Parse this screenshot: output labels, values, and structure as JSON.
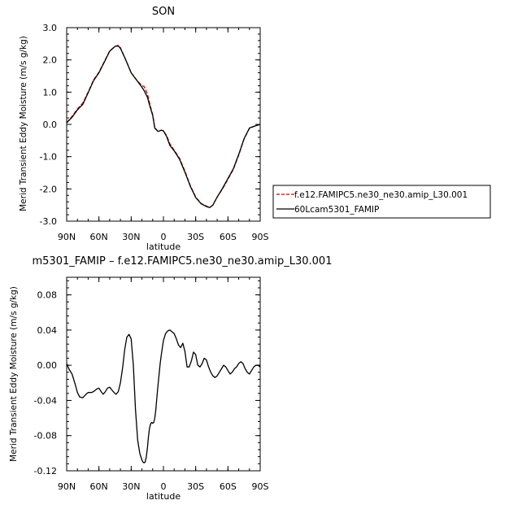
{
  "chart_data": [
    {
      "type": "line",
      "title": "SON",
      "xlabel": "latitude",
      "ylabel": "Merid Transient Eddy Moisture  (m/s g/kg)",
      "xticks": [
        "90N",
        "60N",
        "30N",
        "0",
        "30S",
        "60S",
        "90S"
      ],
      "yticks": [
        "3.0",
        "2.0",
        "1.0",
        "0.0",
        "-1.0",
        "-2.0",
        "-3.0"
      ],
      "xlim": [
        -90,
        90
      ],
      "ylim": [
        -3.0,
        3.0
      ],
      "legend_placement": "right",
      "series": [
        {
          "name": "f.e12.FAMIPC5.ne30_ne30.amip_L30.001",
          "color": "#cc0000",
          "style": "dashed",
          "x": [
            -90,
            -85,
            -80,
            -75,
            -70,
            -65,
            -60,
            -55,
            -50,
            -45,
            -42,
            -40,
            -35,
            -30,
            -25,
            -20,
            -18,
            -15,
            -12,
            -10,
            -8,
            -5,
            -2,
            0,
            3,
            6,
            10,
            15,
            20,
            25,
            30,
            35,
            40,
            43,
            46,
            50,
            55,
            60,
            65,
            70,
            75,
            80,
            85,
            90
          ],
          "y": [
            0.05,
            0.25,
            0.48,
            0.66,
            1.0,
            1.38,
            1.62,
            1.95,
            2.28,
            2.42,
            2.45,
            2.38,
            2.0,
            1.6,
            1.38,
            1.2,
            1.18,
            0.95,
            0.55,
            0.3,
            -0.1,
            -0.22,
            -0.18,
            -0.2,
            -0.35,
            -0.6,
            -0.8,
            -1.05,
            -1.45,
            -1.9,
            -2.25,
            -2.45,
            -2.53,
            -2.58,
            -2.5,
            -2.25,
            -2.0,
            -1.7,
            -1.4,
            -0.95,
            -0.45,
            -0.12,
            -0.05,
            0.0
          ]
        },
        {
          "name": "60Lcam5301_FAMIP",
          "color": "#000000",
          "style": "solid",
          "x": [
            -90,
            -85,
            -80,
            -75,
            -70,
            -65,
            -60,
            -55,
            -50,
            -45,
            -42,
            -40,
            -35,
            -30,
            -25,
            -20,
            -18,
            -15,
            -12,
            -10,
            -8,
            -5,
            -2,
            0,
            3,
            6,
            10,
            15,
            20,
            25,
            30,
            35,
            40,
            43,
            46,
            50,
            55,
            60,
            65,
            70,
            75,
            80,
            85,
            90
          ],
          "y": [
            0.05,
            0.22,
            0.45,
            0.62,
            0.98,
            1.36,
            1.6,
            1.93,
            2.27,
            2.42,
            2.43,
            2.36,
            2.0,
            1.6,
            1.38,
            1.15,
            1.05,
            0.85,
            0.5,
            0.28,
            -0.12,
            -0.22,
            -0.18,
            -0.2,
            -0.38,
            -0.65,
            -0.82,
            -1.08,
            -1.48,
            -1.92,
            -2.27,
            -2.46,
            -2.55,
            -2.58,
            -2.5,
            -2.25,
            -1.98,
            -1.68,
            -1.38,
            -0.93,
            -0.44,
            -0.11,
            -0.05,
            0.0
          ]
        }
      ]
    },
    {
      "type": "line",
      "title": "m5301_FAMIP  –  f.e12.FAMIPC5.ne30_ne30.amip_L30.001",
      "xlabel": "latitude",
      "ylabel": "Merid Transient Eddy Moisture  (m/s g/kg)",
      "xticks": [
        "90N",
        "60N",
        "30N",
        "0",
        "30S",
        "60S",
        "90S"
      ],
      "yticks": [
        "0.08",
        "0.04",
        "0.00",
        "-0.04",
        "-0.08",
        "-0.12"
      ],
      "xlim": [
        -90,
        90
      ],
      "ylim": [
        -0.12,
        0.1
      ],
      "series": [
        {
          "color": "#000000",
          "style": "solid",
          "x": [
            -90,
            -88,
            -85,
            -82,
            -80,
            -78,
            -75,
            -72,
            -70,
            -67,
            -65,
            -62,
            -60,
            -58,
            -56,
            -54,
            -52,
            -50,
            -48,
            -46,
            -44,
            -42,
            -40,
            -38,
            -36,
            -34,
            -32,
            -30,
            -28,
            -26,
            -24,
            -22,
            -20,
            -19,
            -18,
            -17,
            -16,
            -15,
            -14,
            -13,
            -12,
            -11,
            -10,
            -9,
            -8,
            -7,
            -6,
            -5,
            -4,
            -3,
            -2,
            -1,
            0,
            2,
            4,
            6,
            8,
            10,
            12,
            14,
            16,
            18,
            20,
            22,
            24,
            26,
            28,
            30,
            32,
            34,
            36,
            38,
            40,
            42,
            44,
            46,
            48,
            50,
            52,
            54,
            56,
            58,
            60,
            62,
            64,
            66,
            68,
            70,
            72,
            74,
            76,
            78,
            80,
            82,
            84,
            86,
            88,
            90
          ],
          "y": [
            0.002,
            -0.004,
            -0.01,
            -0.022,
            -0.031,
            -0.036,
            -0.037,
            -0.033,
            -0.031,
            -0.031,
            -0.03,
            -0.027,
            -0.026,
            -0.03,
            -0.033,
            -0.03,
            -0.026,
            -0.025,
            -0.028,
            -0.031,
            -0.033,
            -0.03,
            -0.02,
            -0.003,
            0.018,
            0.032,
            0.035,
            0.03,
            0.0,
            -0.05,
            -0.085,
            -0.1,
            -0.108,
            -0.11,
            -0.111,
            -0.11,
            -0.105,
            -0.095,
            -0.082,
            -0.072,
            -0.067,
            -0.065,
            -0.066,
            -0.065,
            -0.06,
            -0.05,
            -0.035,
            -0.022,
            -0.01,
            0.002,
            0.012,
            0.02,
            0.028,
            0.036,
            0.039,
            0.04,
            0.038,
            0.036,
            0.03,
            0.023,
            0.02,
            0.025,
            0.016,
            -0.002,
            -0.002,
            0.005,
            0.015,
            0.012,
            0.0,
            -0.002,
            0.002,
            0.008,
            0.006,
            -0.002,
            -0.008,
            -0.012,
            -0.014,
            -0.012,
            -0.008,
            -0.004,
            0.0,
            -0.002,
            -0.006,
            -0.01,
            -0.008,
            -0.004,
            -0.002,
            0.002,
            0.004,
            0.002,
            -0.004,
            -0.008,
            -0.01,
            -0.006,
            -0.002,
            0.0,
            0.0,
            -0.002
          ]
        }
      ]
    }
  ]
}
